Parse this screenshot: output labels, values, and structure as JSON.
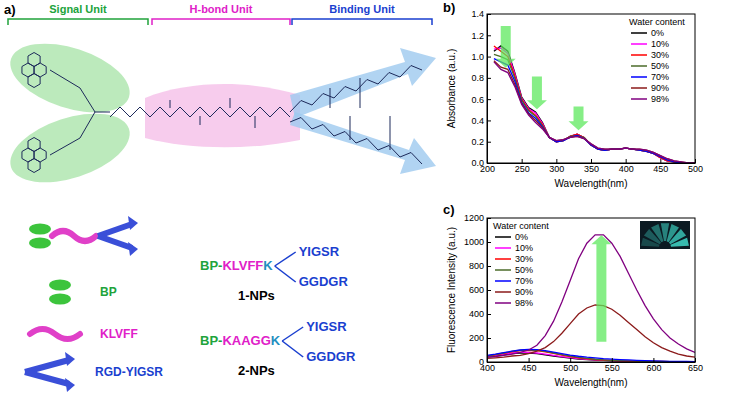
{
  "diagram": {
    "panel_label": "a)",
    "units": [
      {
        "label": "Signal Unit"
      },
      {
        "label": "H-bond Unit"
      },
      {
        "label": "Binding Unit"
      }
    ],
    "components": [
      {
        "label": "BP"
      },
      {
        "label": "KLVFF"
      },
      {
        "label": "RGD-YIGSR"
      }
    ],
    "constructs": [
      {
        "core": [
          "BP-",
          "KLVFF",
          "K"
        ],
        "branches": [
          "YIGSR",
          "GGDGR"
        ],
        "name": "1-NPs"
      },
      {
        "core": [
          "BP-",
          "KAAGG",
          "K"
        ],
        "branches": [
          "YIGSR",
          "GGDGR"
        ],
        "name": "2-NPs"
      }
    ]
  },
  "chart_data": [
    {
      "type": "line",
      "title": "b)",
      "x_label": "Wavelength(nm)",
      "y_label": "Absorbance (a.u.)",
      "legend_title": "Water content",
      "legend": "upper right",
      "grid": false,
      "xlim": [
        200,
        500
      ],
      "xticks": [
        200,
        250,
        300,
        350,
        400,
        450,
        500
      ],
      "ylim": [
        0,
        1.4
      ],
      "yticks": [
        {
          "value": 0,
          "label": "0.0"
        },
        {
          "value": 0.2,
          "label": "0.2"
        },
        {
          "value": 0.4,
          "label": "0.4"
        },
        {
          "value": 0.6,
          "label": "0.6"
        },
        {
          "value": 0.8,
          "label": "0.8"
        },
        {
          "value": 1.0,
          "label": "1.0"
        },
        {
          "value": 1.2,
          "label": "1.2"
        },
        {
          "value": 1.4,
          "label": "1.4"
        }
      ],
      "x": [
        210,
        220,
        230,
        240,
        250,
        260,
        270,
        280,
        290,
        300,
        310,
        320,
        330,
        340,
        350,
        360,
        370,
        380,
        390,
        400,
        410,
        420,
        430,
        440,
        450,
        460,
        470,
        480,
        490,
        500
      ],
      "series": [
        {
          "name": "0%",
          "color": "#000000",
          "values": [
            1.05,
            1.1,
            1.05,
            0.85,
            0.62,
            0.52,
            0.48,
            0.38,
            0.24,
            0.2,
            0.21,
            0.25,
            0.27,
            0.24,
            0.17,
            0.13,
            0.12,
            0.13,
            0.13,
            0.14,
            0.13,
            0.12,
            0.11,
            0.09,
            0.05,
            0.02,
            0.01,
            0.0,
            0.0,
            0.0
          ]
        },
        {
          "name": "10%",
          "color": "#ff00ff",
          "values": [
            1.07,
            1.08,
            1.03,
            0.84,
            0.61,
            0.51,
            0.47,
            0.37,
            0.24,
            0.2,
            0.21,
            0.25,
            0.27,
            0.24,
            0.17,
            0.13,
            0.12,
            0.13,
            0.13,
            0.14,
            0.13,
            0.12,
            0.11,
            0.09,
            0.05,
            0.02,
            0.01,
            0.0,
            0.0,
            0.0
          ]
        },
        {
          "name": "30%",
          "color": "#ff0000",
          "values": [
            1.1,
            1.05,
            1.0,
            0.82,
            0.6,
            0.5,
            0.45,
            0.36,
            0.24,
            0.2,
            0.21,
            0.25,
            0.27,
            0.24,
            0.17,
            0.13,
            0.12,
            0.13,
            0.13,
            0.14,
            0.13,
            0.12,
            0.11,
            0.09,
            0.05,
            0.02,
            0.01,
            0.0,
            0.0,
            0.0
          ]
        },
        {
          "name": "50%",
          "color": "#4b6b2a",
          "values": [
            1.02,
            1.0,
            0.97,
            0.8,
            0.59,
            0.49,
            0.44,
            0.35,
            0.24,
            0.2,
            0.21,
            0.25,
            0.26,
            0.24,
            0.17,
            0.13,
            0.12,
            0.13,
            0.13,
            0.14,
            0.13,
            0.12,
            0.11,
            0.09,
            0.06,
            0.03,
            0.01,
            0.0,
            0.0,
            0.0
          ]
        },
        {
          "name": "70%",
          "color": "#0000ff",
          "values": [
            0.98,
            0.95,
            0.92,
            0.77,
            0.57,
            0.47,
            0.42,
            0.34,
            0.24,
            0.2,
            0.21,
            0.24,
            0.26,
            0.23,
            0.17,
            0.13,
            0.12,
            0.13,
            0.13,
            0.14,
            0.13,
            0.12,
            0.11,
            0.09,
            0.06,
            0.03,
            0.01,
            0.0,
            0.0,
            0.0
          ]
        },
        {
          "name": "90%",
          "color": "#8b1a1a",
          "values": [
            0.96,
            0.9,
            0.88,
            0.74,
            0.56,
            0.46,
            0.4,
            0.33,
            0.24,
            0.21,
            0.22,
            0.24,
            0.25,
            0.23,
            0.18,
            0.14,
            0.13,
            0.13,
            0.13,
            0.14,
            0.13,
            0.13,
            0.12,
            0.1,
            0.07,
            0.04,
            0.02,
            0.01,
            0.0,
            0.0
          ]
        },
        {
          "name": "98%",
          "color": "#800080",
          "values": [
            0.95,
            0.88,
            0.85,
            0.72,
            0.55,
            0.45,
            0.38,
            0.32,
            0.24,
            0.21,
            0.22,
            0.24,
            0.25,
            0.23,
            0.18,
            0.14,
            0.13,
            0.13,
            0.13,
            0.14,
            0.13,
            0.13,
            0.12,
            0.1,
            0.07,
            0.04,
            0.02,
            0.01,
            0.0,
            0.0
          ]
        }
      ]
    },
    {
      "type": "line",
      "title": "c)",
      "x_label": "Wavelength(nm)",
      "y_label": "Fluorescence Intensity (a.u.)",
      "legend_title": "Water content",
      "legend": "upper left",
      "grid": false,
      "xlim": [
        400,
        650
      ],
      "xticks": [
        400,
        450,
        500,
        550,
        600,
        650
      ],
      "ylim": [
        0,
        1200
      ],
      "yticks": [
        0,
        200,
        400,
        600,
        800,
        1000,
        1200
      ],
      "x": [
        400,
        410,
        420,
        430,
        440,
        450,
        460,
        470,
        480,
        490,
        500,
        510,
        520,
        530,
        540,
        550,
        560,
        570,
        580,
        590,
        600,
        610,
        620,
        630,
        640,
        650
      ],
      "series": [
        {
          "name": "0%",
          "color": "#000000",
          "values": [
            40,
            50,
            60,
            70,
            75,
            75,
            70,
            60,
            50,
            40,
            32,
            25,
            20,
            16,
            13,
            10,
            8,
            6,
            5,
            4,
            3,
            3,
            2,
            2,
            2,
            2
          ]
        },
        {
          "name": "10%",
          "color": "#ff00ff",
          "values": [
            45,
            55,
            65,
            75,
            80,
            80,
            75,
            65,
            55,
            45,
            36,
            28,
            22,
            18,
            14,
            11,
            9,
            7,
            6,
            5,
            4,
            3,
            3,
            2,
            2,
            2
          ]
        },
        {
          "name": "30%",
          "color": "#ff0000",
          "values": [
            50,
            60,
            72,
            85,
            95,
            98,
            95,
            85,
            72,
            58,
            45,
            35,
            27,
            21,
            16,
            13,
            10,
            8,
            6,
            5,
            4,
            4,
            3,
            3,
            2,
            2
          ]
        },
        {
          "name": "50%",
          "color": "#4b6b2a",
          "values": [
            50,
            62,
            75,
            88,
            98,
            102,
            98,
            88,
            75,
            62,
            50,
            38,
            30,
            23,
            18,
            14,
            11,
            9,
            7,
            6,
            5,
            4,
            3,
            3,
            2,
            2
          ]
        },
        {
          "name": "70%",
          "color": "#0000ff",
          "values": [
            55,
            65,
            78,
            90,
            100,
            105,
            103,
            95,
            82,
            70,
            58,
            48,
            40,
            34,
            28,
            24,
            20,
            17,
            14,
            11,
            9,
            7,
            6,
            5,
            4,
            3
          ]
        },
        {
          "name": "90%",
          "color": "#8b1a1a",
          "values": [
            30,
            35,
            40,
            50,
            55,
            70,
            90,
            120,
            170,
            240,
            320,
            400,
            450,
            475,
            470,
            440,
            390,
            330,
            270,
            210,
            160,
            120,
            90,
            65,
            50,
            40
          ]
        },
        {
          "name": "98%",
          "color": "#800080",
          "values": [
            40,
            45,
            55,
            65,
            80,
            100,
            140,
            220,
            340,
            500,
            680,
            860,
            990,
            1060,
            1060,
            990,
            880,
            740,
            600,
            470,
            360,
            270,
            200,
            150,
            110,
            80
          ]
        }
      ]
    }
  ]
}
